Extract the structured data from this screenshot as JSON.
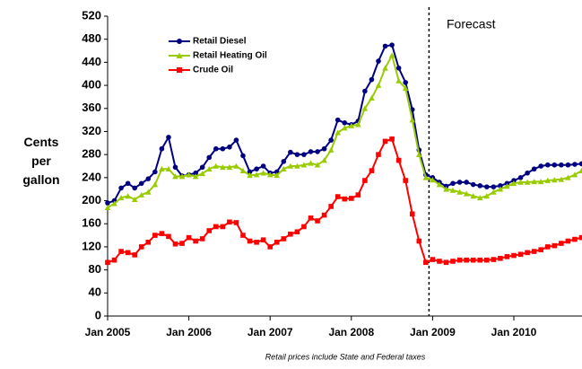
{
  "chart_data": {
    "type": "line",
    "y_label": "Cents per gallon",
    "note": "Retail prices include State and Federal taxes",
    "annotation": "Forecast",
    "categories": [
      "Jan 2005",
      null,
      null,
      null,
      null,
      null,
      null,
      null,
      null,
      null,
      null,
      null,
      "Jan 2006",
      null,
      null,
      null,
      null,
      null,
      null,
      null,
      null,
      null,
      null,
      null,
      "Jan 2007",
      null,
      null,
      null,
      null,
      null,
      null,
      null,
      null,
      null,
      null,
      null,
      "Jan 2008",
      null,
      null,
      null,
      null,
      null,
      null,
      null,
      null,
      null,
      null,
      null,
      "Jan 2009",
      null,
      null,
      null,
      null,
      null,
      null,
      null,
      null,
      null,
      null,
      null,
      "Jan 2010",
      null,
      null,
      null,
      null,
      null,
      null,
      null,
      null,
      null,
      null
    ],
    "series": [
      {
        "name": "Retail Diesel",
        "color": "#000080",
        "marker": "circle",
        "values": [
          196,
          200,
          222,
          230,
          222,
          230,
          238,
          250,
          290,
          310,
          258,
          243,
          245,
          248,
          258,
          275,
          290,
          290,
          293,
          305,
          278,
          250,
          255,
          260,
          248,
          250,
          268,
          284,
          280,
          280,
          285,
          285,
          290,
          305,
          340,
          335,
          332,
          338,
          390,
          410,
          442,
          468,
          470,
          430,
          405,
          358,
          288,
          245,
          240,
          232,
          225,
          230,
          232,
          232,
          228,
          226,
          224,
          224,
          226,
          230,
          235,
          240,
          248,
          255,
          260,
          262,
          262,
          262,
          262,
          263,
          264
        ]
      },
      {
        "name": "Retail Heating Oil",
        "color": "#99cc00",
        "marker": "triangle",
        "values": [
          188,
          195,
          205,
          208,
          202,
          210,
          215,
          228,
          255,
          255,
          242,
          242,
          245,
          242,
          247,
          255,
          260,
          258,
          258,
          260,
          252,
          244,
          245,
          248,
          245,
          244,
          255,
          260,
          260,
          262,
          265,
          262,
          270,
          288,
          318,
          326,
          330,
          332,
          360,
          378,
          400,
          430,
          452,
          408,
          395,
          340,
          280,
          240,
          236,
          228,
          220,
          218,
          215,
          212,
          208,
          205,
          208,
          215,
          220,
          225,
          230,
          232,
          232,
          233,
          233,
          235,
          236,
          237,
          240,
          245,
          252
        ]
      },
      {
        "name": "Crude Oil",
        "color": "#ff0000",
        "marker": "square",
        "values": [
          93,
          97,
          112,
          110,
          106,
          120,
          128,
          140,
          143,
          138,
          125,
          126,
          136,
          130,
          134,
          148,
          155,
          155,
          163,
          162,
          140,
          130,
          128,
          132,
          120,
          128,
          134,
          142,
          146,
          155,
          170,
          165,
          175,
          190,
          207,
          203,
          204,
          210,
          235,
          252,
          280,
          303,
          307,
          270,
          235,
          177,
          130,
          93,
          98,
          95,
          93,
          95,
          97,
          97,
          97,
          97,
          97,
          98,
          100,
          103,
          105,
          107,
          110,
          112,
          115,
          120,
          122,
          126,
          130,
          133,
          136
        ]
      }
    ],
    "ylim": [
      0,
      520
    ],
    "yticks": [
      0,
      40,
      80,
      120,
      160,
      200,
      240,
      280,
      320,
      360,
      400,
      440,
      480,
      520
    ]
  }
}
